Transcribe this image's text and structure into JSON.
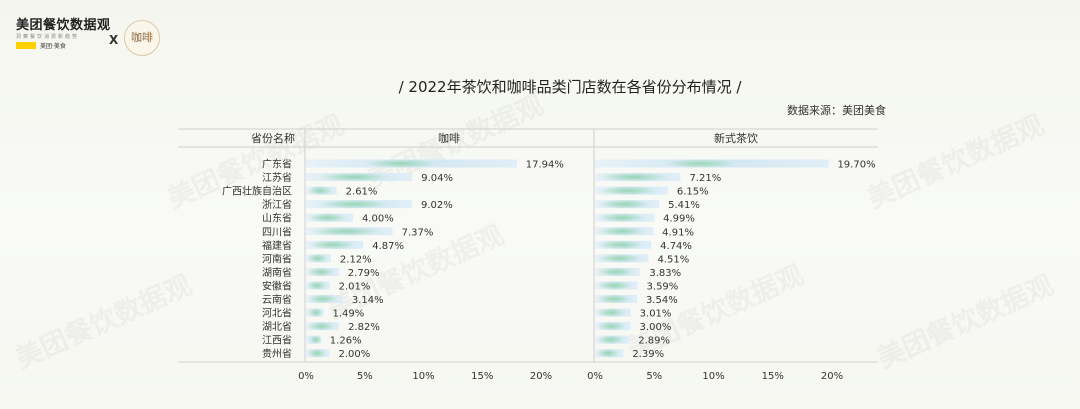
{
  "brand": {
    "name": "美团餐饮数据观",
    "tagline": "洞察餐饮消费新趋势",
    "badge": "美团·美食",
    "collab_mark": "X",
    "partner_logo_text": "咖啡"
  },
  "title": "/ 2022年茶饮和咖啡品类门店数在各省份分布情况 /",
  "source": "数据来源：美团美食",
  "watermark_text": "美团餐饮数据观",
  "colors": {
    "bar_light": "#deedf7",
    "bar_green": "#9dd9b4",
    "text": "#333333",
    "grid": "#c8c8c8"
  },
  "chart_data": {
    "type": "bar",
    "orientation": "horizontal",
    "category_header": "省份名称",
    "categories": [
      "广东省",
      "江苏省",
      "广西壮族自治区",
      "浙江省",
      "山东省",
      "四川省",
      "福建省",
      "河南省",
      "湖南省",
      "安徽省",
      "云南省",
      "河北省",
      "湖北省",
      "江西省",
      "贵州省"
    ],
    "series": [
      {
        "name": "咖啡",
        "values": [
          17.94,
          9.04,
          2.61,
          9.02,
          4.0,
          7.37,
          4.87,
          2.12,
          2.79,
          2.01,
          3.14,
          1.49,
          2.82,
          1.26,
          2.0
        ],
        "labels": [
          "17.94%",
          "9.04%",
          "2.61%",
          "9.02%",
          "4.00%",
          "7.37%",
          "4.87%",
          "2.12%",
          "2.79%",
          "2.01%",
          "3.14%",
          "1.49%",
          "2.82%",
          "1.26%",
          "2.00%"
        ]
      },
      {
        "name": "新式茶饮",
        "values": [
          19.7,
          7.21,
          6.15,
          5.41,
          4.99,
          4.91,
          4.74,
          4.51,
          3.83,
          3.59,
          3.54,
          3.01,
          3.0,
          2.89,
          2.39
        ],
        "labels": [
          "19.70%",
          "7.21%",
          "6.15%",
          "5.41%",
          "4.99%",
          "4.91%",
          "4.74%",
          "4.51%",
          "3.83%",
          "3.59%",
          "3.54%",
          "3.01%",
          "3.00%",
          "2.89%",
          "2.39%"
        ]
      }
    ],
    "xlim": [
      0,
      20
    ],
    "xticks": [
      "0%",
      "5%",
      "10%",
      "15%",
      "20%"
    ],
    "grid": false
  }
}
